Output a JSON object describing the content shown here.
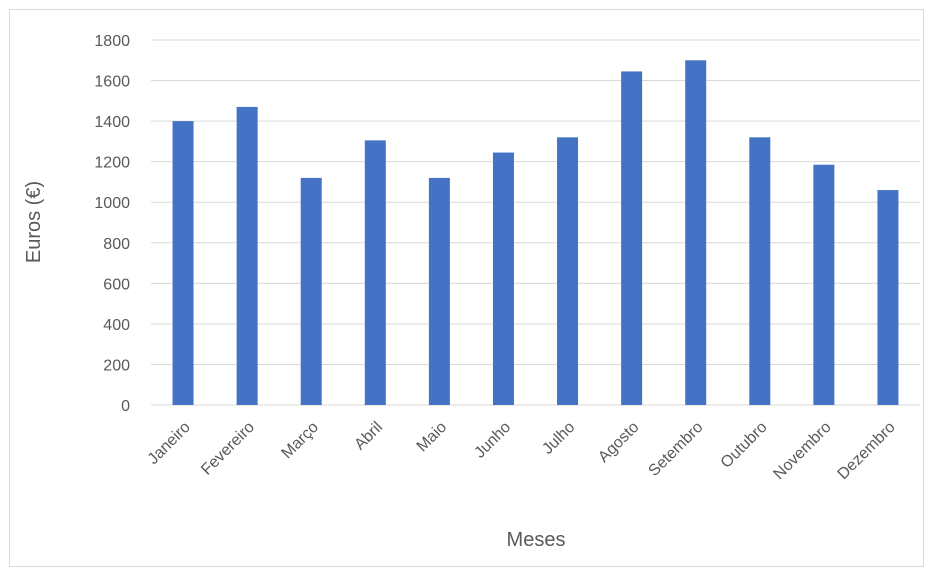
{
  "chart_data": {
    "type": "bar",
    "categories": [
      "Janeiro",
      "Fevereiro",
      "Março",
      "Abril",
      "Maio",
      "Junho",
      "Julho",
      "Agosto",
      "Setembro",
      "Outubro",
      "Novembro",
      "Dezembro"
    ],
    "values": [
      1400,
      1470,
      1120,
      1305,
      1120,
      1245,
      1320,
      1645,
      1700,
      1320,
      1185,
      1060
    ],
    "title": "",
    "xlabel": "Meses",
    "ylabel": "Euros (€)",
    "ylim": [
      0,
      1800
    ],
    "yticks": [
      0,
      200,
      400,
      600,
      800,
      1000,
      1200,
      1400,
      1600,
      1800
    ],
    "grid": true,
    "bar_color": "#4472c4",
    "grid_color": "#d9d9d9"
  }
}
